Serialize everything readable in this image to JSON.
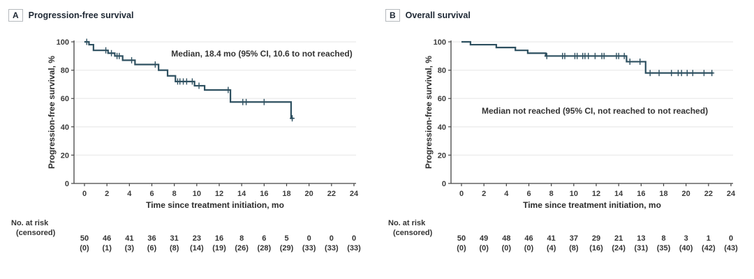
{
  "figure": {
    "risk_header_line1": "No. at risk",
    "risk_header_line2": "(censored)",
    "colors": {
      "curve": "#2E5060",
      "grid": "#ebebeb",
      "axis": "#444444",
      "tick_text": "#3b3b3b",
      "risk_text": "#333333",
      "title_text": "#1d2733",
      "background": "#ffffff"
    }
  },
  "chart_data": [
    {
      "type": "line",
      "subtype": "kaplan-meier-step",
      "panel_letter": "A",
      "title": "Progression-free survival",
      "annotation": "Median, 18.4 mo (95% CI, 10.6 to not reached)",
      "xlabel": "Time since treatment initiation, mo",
      "ylabel": "Progression-free survival, %",
      "xlim": [
        0,
        24
      ],
      "ylim": [
        0,
        100
      ],
      "x_ticks": [
        0,
        2,
        4,
        6,
        8,
        10,
        12,
        14,
        16,
        18,
        20,
        22,
        24
      ],
      "y_ticks": [
        0,
        20,
        40,
        60,
        80,
        100
      ],
      "grid": "horizontal",
      "legend": "none",
      "steps": [
        [
          0,
          100
        ],
        [
          0.4,
          98
        ],
        [
          0.8,
          94
        ],
        [
          2.1,
          92
        ],
        [
          2.7,
          90
        ],
        [
          3.4,
          87
        ],
        [
          4.5,
          84
        ],
        [
          6.6,
          80
        ],
        [
          7.4,
          76
        ],
        [
          8.1,
          72
        ],
        [
          9.8,
          69
        ],
        [
          10.7,
          66
        ],
        [
          13.0,
          57.5
        ],
        [
          18.4,
          46
        ]
      ],
      "end_t": 18.6,
      "censor_marks": [
        [
          0.2,
          100
        ],
        [
          1.9,
          94
        ],
        [
          2.4,
          92
        ],
        [
          2.9,
          90
        ],
        [
          3.1,
          90
        ],
        [
          4.2,
          87
        ],
        [
          6.3,
          84
        ],
        [
          8.3,
          72
        ],
        [
          8.5,
          72
        ],
        [
          8.8,
          72
        ],
        [
          9.1,
          72
        ],
        [
          9.6,
          72
        ],
        [
          10.2,
          69
        ],
        [
          12.8,
          66
        ],
        [
          14.1,
          57.5
        ],
        [
          14.4,
          57.5
        ],
        [
          16.0,
          57.5
        ],
        [
          18.5,
          46
        ]
      ],
      "at_risk": [
        50,
        46,
        41,
        36,
        31,
        23,
        16,
        8,
        6,
        5,
        0,
        0,
        0
      ],
      "censored": [
        0,
        1,
        3,
        6,
        8,
        14,
        19,
        26,
        28,
        29,
        33,
        33,
        33
      ]
    },
    {
      "type": "line",
      "subtype": "kaplan-meier-step",
      "panel_letter": "B",
      "title": "Overall survival",
      "annotation": "Median not reached (95% CI, not reached to not reached)",
      "xlabel": "Time since treatment initiation, mo",
      "ylabel": "Progression-free survival, %",
      "xlim": [
        0,
        24
      ],
      "ylim": [
        0,
        100
      ],
      "x_ticks": [
        0,
        2,
        4,
        6,
        8,
        10,
        12,
        14,
        16,
        18,
        20,
        22,
        24
      ],
      "y_ticks": [
        0,
        20,
        40,
        60,
        80,
        100
      ],
      "grid": "horizontal",
      "legend": "none",
      "steps": [
        [
          0,
          100
        ],
        [
          0.8,
          98
        ],
        [
          3.1,
          96
        ],
        [
          4.8,
          94
        ],
        [
          5.9,
          92
        ],
        [
          7.5,
          90
        ],
        [
          14.7,
          86
        ],
        [
          16.4,
          78
        ]
      ],
      "end_t": 22.4,
      "censor_marks": [
        [
          7.6,
          90
        ],
        [
          9.0,
          90
        ],
        [
          9.2,
          90
        ],
        [
          10.1,
          90
        ],
        [
          10.3,
          90
        ],
        [
          10.8,
          90
        ],
        [
          11.0,
          90
        ],
        [
          11.3,
          90
        ],
        [
          11.9,
          90
        ],
        [
          12.5,
          90
        ],
        [
          12.7,
          90
        ],
        [
          13.8,
          90
        ],
        [
          14.0,
          90
        ],
        [
          14.5,
          90
        ],
        [
          15.0,
          86
        ],
        [
          15.9,
          86
        ],
        [
          16.8,
          78
        ],
        [
          17.6,
          78
        ],
        [
          18.7,
          78
        ],
        [
          19.3,
          78
        ],
        [
          19.6,
          78
        ],
        [
          20.1,
          78
        ],
        [
          20.6,
          78
        ],
        [
          21.6,
          78
        ],
        [
          22.3,
          78
        ]
      ],
      "at_risk": [
        50,
        49,
        48,
        46,
        41,
        37,
        29,
        21,
        13,
        8,
        3,
        1,
        0
      ],
      "censored": [
        0,
        0,
        0,
        0,
        4,
        8,
        16,
        24,
        31,
        35,
        40,
        42,
        43
      ]
    }
  ]
}
